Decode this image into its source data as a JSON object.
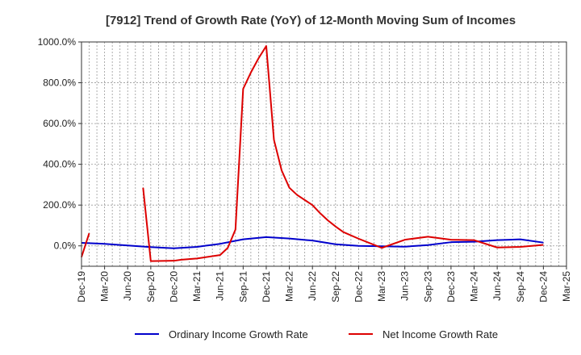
{
  "chart_data": {
    "type": "line",
    "title": "[7912]  Trend of Growth Rate (YoY) of 12-Month Moving Sum of Incomes",
    "xlabel": "",
    "ylabel": "",
    "ylim": [
      -100,
      1000
    ],
    "yticks": [
      0,
      200,
      400,
      600,
      800,
      1000
    ],
    "ytick_labels": [
      "0.0%",
      "200.0%",
      "400.0%",
      "600.0%",
      "800.0%",
      "1000.0%"
    ],
    "x_start": "2019-12",
    "x_end": "2025-03",
    "xtick_labels": [
      "Dec-19",
      "Mar-20",
      "Jun-20",
      "Sep-20",
      "Dec-20",
      "Mar-21",
      "Jun-21",
      "Sep-21",
      "Dec-21",
      "Mar-22",
      "Jun-22",
      "Sep-22",
      "Dec-22",
      "Mar-23",
      "Jun-23",
      "Sep-23",
      "Dec-23",
      "Mar-24",
      "Jun-24",
      "Sep-24",
      "Dec-24",
      "Mar-25"
    ],
    "grid": true,
    "legend_position": "bottom",
    "series": [
      {
        "name": "Ordinary Income Growth Rate",
        "color": "#0000cc",
        "points": [
          [
            "2019-12",
            15
          ],
          [
            "2020-03",
            10
          ],
          [
            "2020-06",
            2
          ],
          [
            "2020-09",
            -6
          ],
          [
            "2020-12",
            -12
          ],
          [
            "2021-03",
            -5
          ],
          [
            "2021-06",
            10
          ],
          [
            "2021-09",
            32
          ],
          [
            "2021-12",
            43
          ],
          [
            "2022-03",
            36
          ],
          [
            "2022-06",
            26
          ],
          [
            "2022-09",
            8
          ],
          [
            "2022-12",
            0
          ],
          [
            "2023-03",
            -2
          ],
          [
            "2023-06",
            -4
          ],
          [
            "2023-09",
            4
          ],
          [
            "2023-12",
            18
          ],
          [
            "2024-03",
            20
          ],
          [
            "2024-06",
            28
          ],
          [
            "2024-09",
            32
          ],
          [
            "2024-12",
            16
          ]
        ]
      },
      {
        "name": "Net Income Growth Rate",
        "color": "#dd0000",
        "segments": [
          [
            [
              "2019-12",
              -55
            ],
            [
              "2020-01",
              62
            ]
          ],
          [
            [
              "2020-08",
              285
            ],
            [
              "2020-09",
              -75
            ],
            [
              "2020-12",
              -73
            ],
            [
              "2021-01",
              -68
            ],
            [
              "2021-03",
              -62
            ],
            [
              "2021-06",
              -45
            ],
            [
              "2021-07",
              -10
            ],
            [
              "2021-08",
              80
            ],
            [
              "2021-09",
              770
            ],
            [
              "2021-10",
              850
            ],
            [
              "2021-11",
              920
            ],
            [
              "2021-12",
              980
            ],
            [
              "2022-01",
              520
            ],
            [
              "2022-02",
              370
            ],
            [
              "2022-03",
              285
            ],
            [
              "2022-04",
              250
            ],
            [
              "2022-06",
              200
            ],
            [
              "2022-07",
              160
            ],
            [
              "2022-08",
              125
            ],
            [
              "2022-09",
              95
            ],
            [
              "2022-10",
              68
            ],
            [
              "2022-12",
              35
            ],
            [
              "2023-02",
              5
            ],
            [
              "2023-03",
              -10
            ],
            [
              "2023-06",
              30
            ],
            [
              "2023-09",
              45
            ],
            [
              "2023-12",
              30
            ],
            [
              "2024-03",
              28
            ],
            [
              "2024-06",
              -8
            ],
            [
              "2024-09",
              -5
            ],
            [
              "2024-12",
              5
            ]
          ]
        ]
      }
    ]
  }
}
